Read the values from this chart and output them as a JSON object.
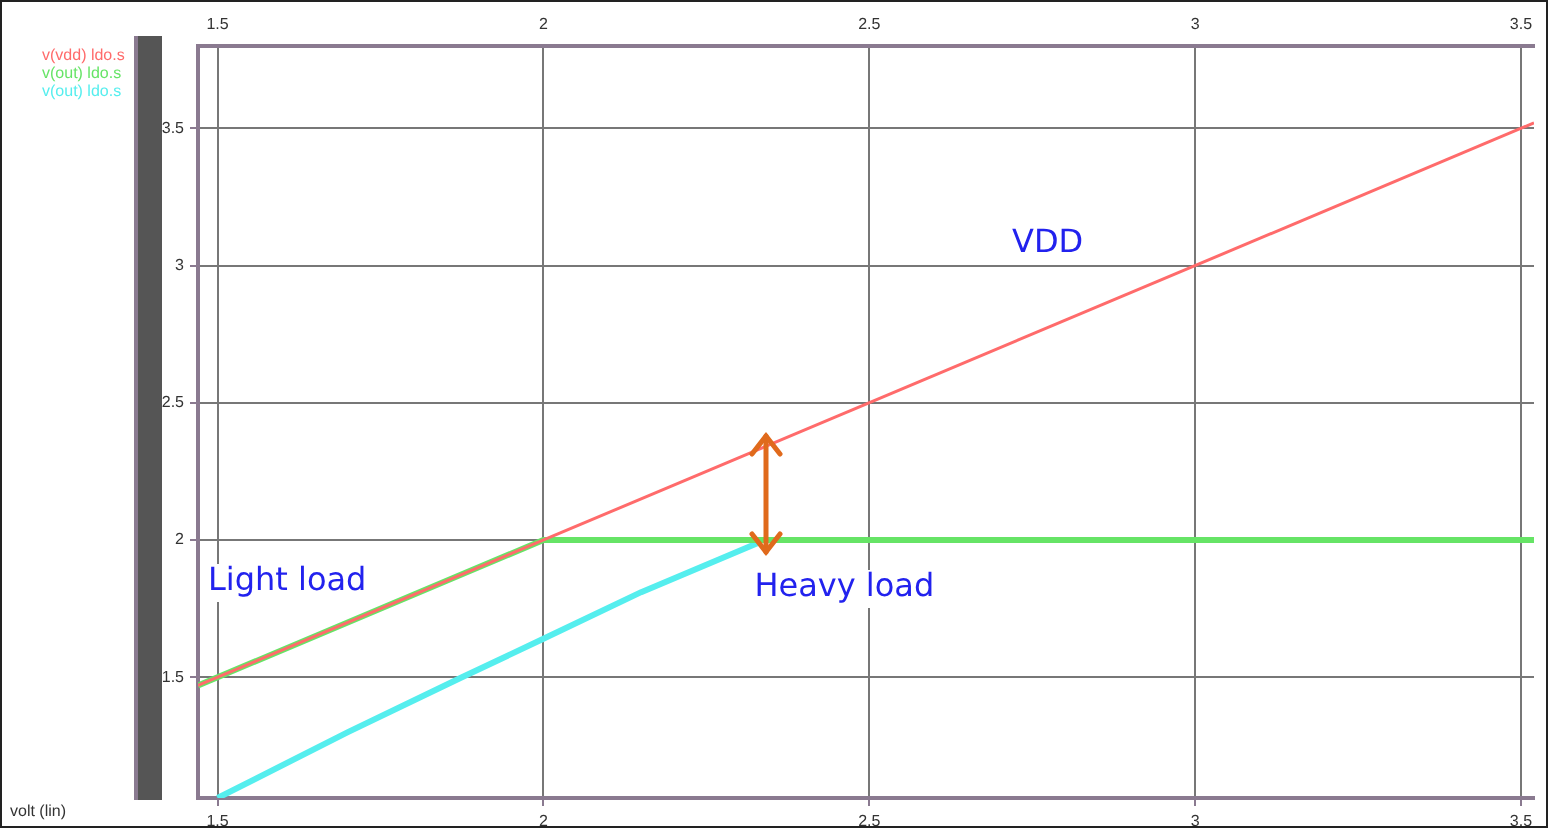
{
  "chart_data": {
    "type": "line",
    "legend": "top left",
    "grid": true,
    "marker": "none",
    "xlim": [
      1.47,
      3.52
    ],
    "xticks": [
      1.5,
      2,
      2.5,
      3,
      3.5
    ],
    "x2lim": [
      1.47,
      3.52
    ],
    "x2ticks": [
      1.5,
      2,
      2.5,
      3,
      3.5
    ],
    "ylim": [
      1.06,
      3.8
    ],
    "yticks": [
      1.5,
      2,
      2.5,
      3,
      3.5
    ],
    "series": [
      {
        "name": "v(vdd) ldo.s",
        "color": "#ff6b6b",
        "x": [
          1.47,
          3.52
        ],
        "values": [
          1.47,
          3.52
        ]
      },
      {
        "name": "v(out) ldo.s",
        "color": "#66e466",
        "x": [
          1.47,
          2,
          3.52
        ],
        "values": [
          1.47,
          2,
          2
        ]
      },
      {
        "name": "v(out) ldo.s",
        "color": "#55eeee",
        "x": [
          1.5,
          1.7,
          1.875,
          2,
          2.15,
          2.33
        ],
        "values": [
          1.06,
          1.3,
          1.5,
          1.64,
          1.81,
          1.99
        ]
      }
    ],
    "annotations": [
      "VDD",
      "Light load",
      {
        "text": "Heavy load",
        "x": 2.33,
        "y": 2.0
      },
      "volt (lin)"
    ]
  }
}
